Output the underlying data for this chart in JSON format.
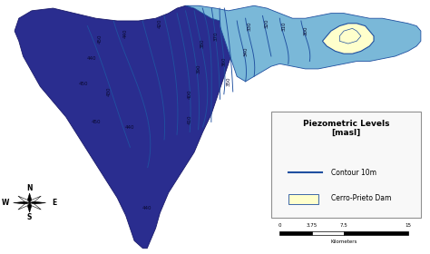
{
  "legend_title": "Piezometric Levels\n[masl]",
  "legend_items": [
    {
      "label": "Contour 10m",
      "color": "#3060b0",
      "type": "line"
    },
    {
      "label": "Cerro-Prieto Dam",
      "color": "#ffffcc",
      "type": "patch"
    }
  ],
  "scale_bar": {
    "ticks": [
      0,
      3.75,
      7.5,
      15
    ],
    "label": "Kilometers"
  },
  "dark_color": "#2a2d8f",
  "light_color": "#7ab8d8",
  "contour_color": "#2050a0",
  "dam_color": "#ffffcc",
  "dam_outline_color": "#2050a0",
  "background_color": "#ffffff",
  "figsize": [
    4.74,
    2.8
  ],
  "dpi": 100
}
